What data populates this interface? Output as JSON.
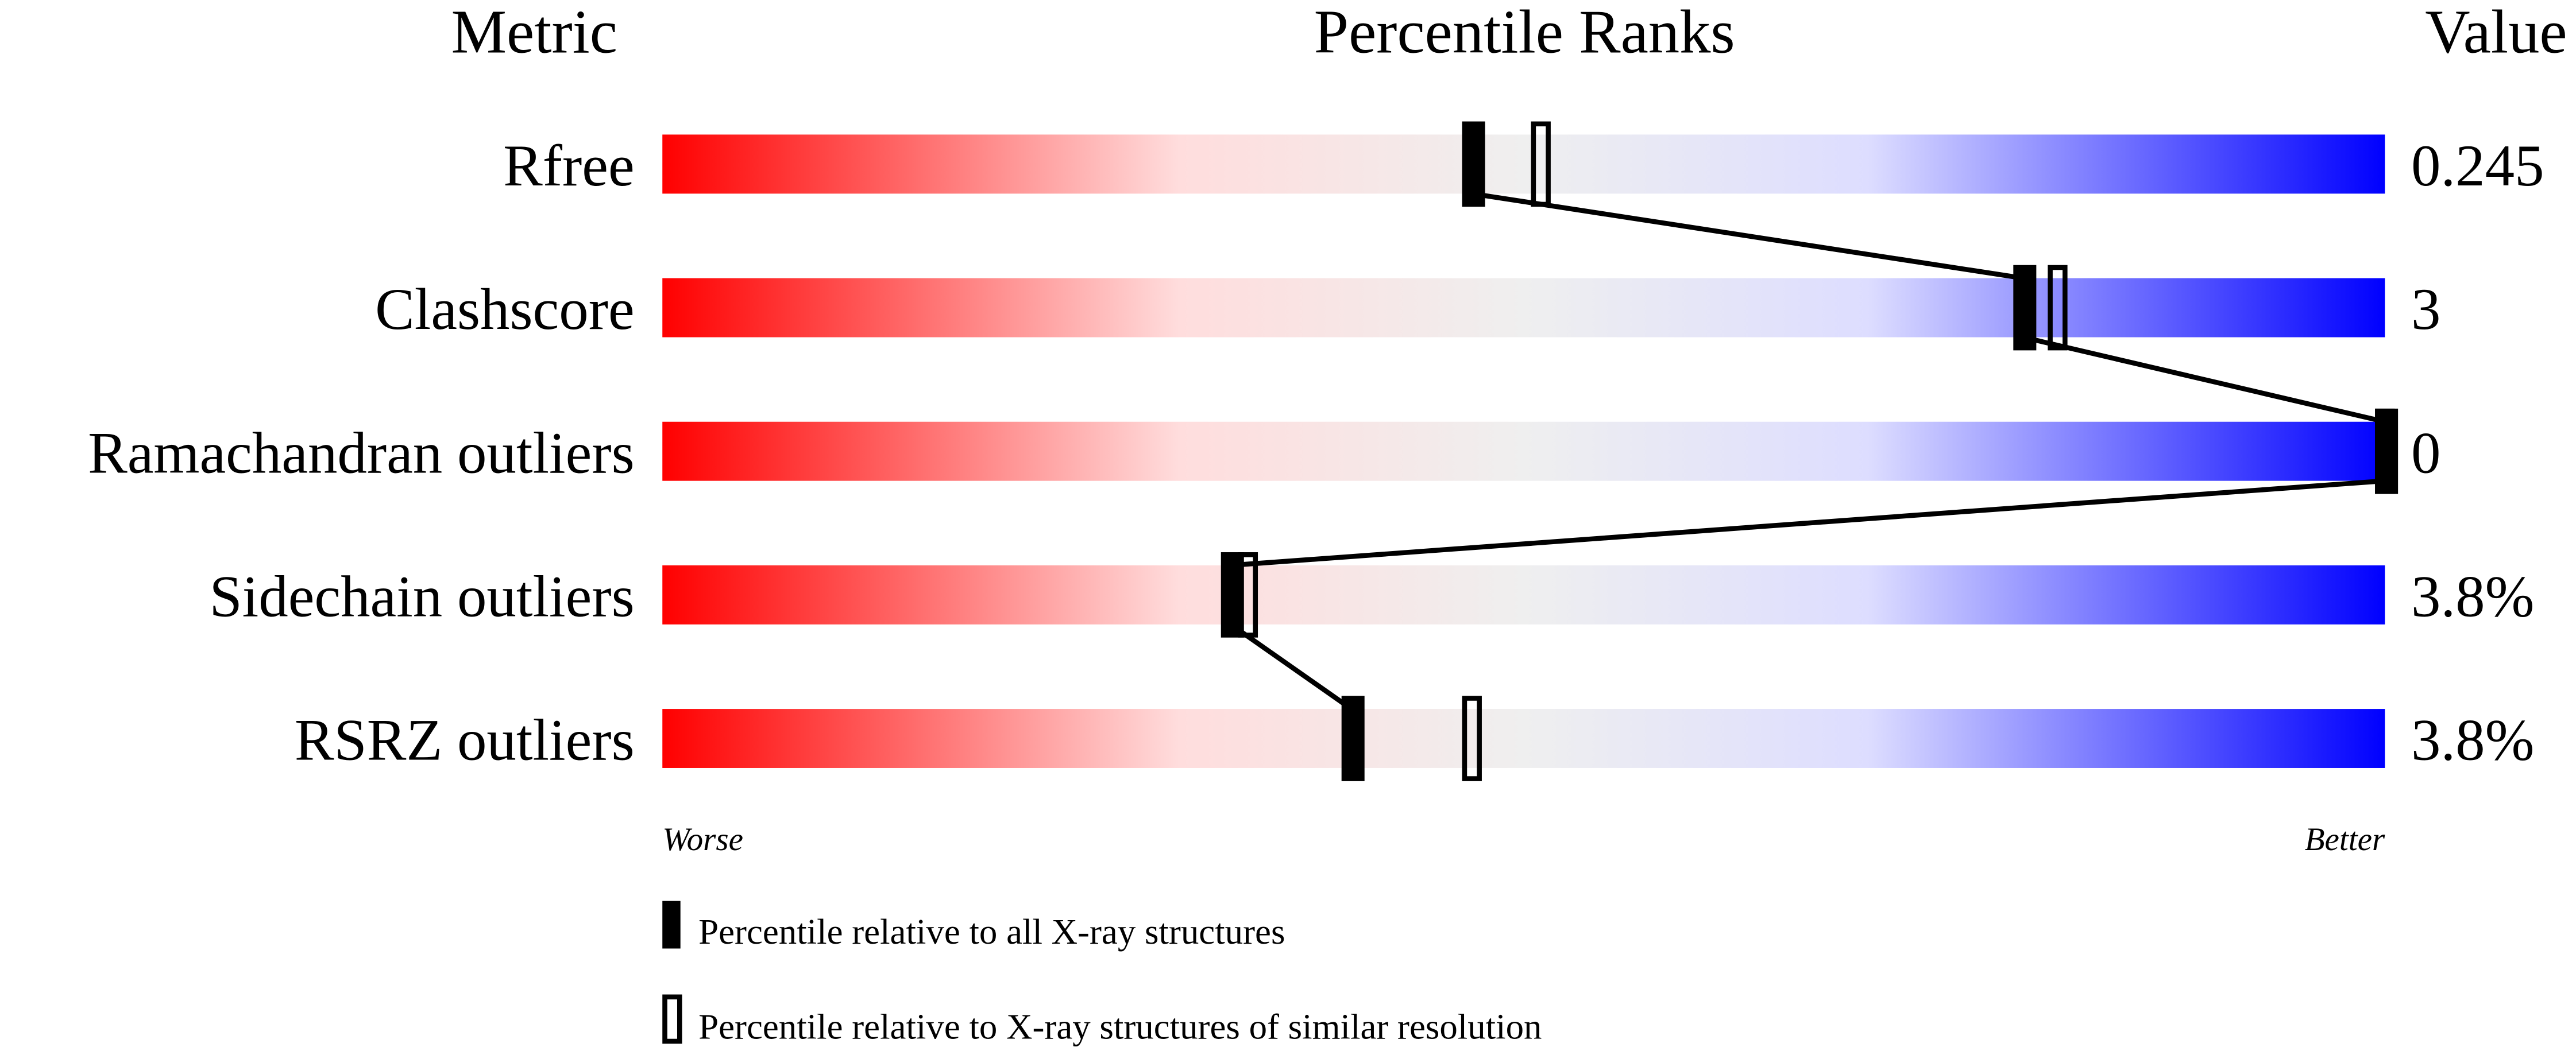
{
  "chart_data": {
    "type": "bar",
    "headers": {
      "metric": "Metric",
      "percentile": "Percentile Ranks",
      "value": "Value"
    },
    "xlim": [
      0,
      100
    ],
    "axis_labels": {
      "left": "Worse",
      "right": "Better"
    },
    "gradient_colors": [
      "#ff0000",
      "#ffdddd",
      "#efefef",
      "#ddddff",
      "#0000ff"
    ],
    "rows": [
      {
        "metric": "Rfree",
        "value": "0.245",
        "percentile_all": 47,
        "percentile_similar": 51
      },
      {
        "metric": "Clashscore",
        "value": "3",
        "percentile_all": 79,
        "percentile_similar": 81
      },
      {
        "metric": "Ramachandran outliers",
        "value": "0",
        "percentile_all": 100,
        "percentile_similar": 100
      },
      {
        "metric": "Sidechain outliers",
        "value": "3.8%",
        "percentile_all": 33,
        "percentile_similar": 34
      },
      {
        "metric": "RSRZ outliers",
        "value": "3.8%",
        "percentile_all": 40,
        "percentile_similar": 47
      }
    ],
    "legend": [
      {
        "marker": "filled",
        "label": "Percentile relative to all X-ray structures"
      },
      {
        "marker": "open",
        "label": "Percentile relative to X-ray structures of similar resolution"
      }
    ]
  }
}
